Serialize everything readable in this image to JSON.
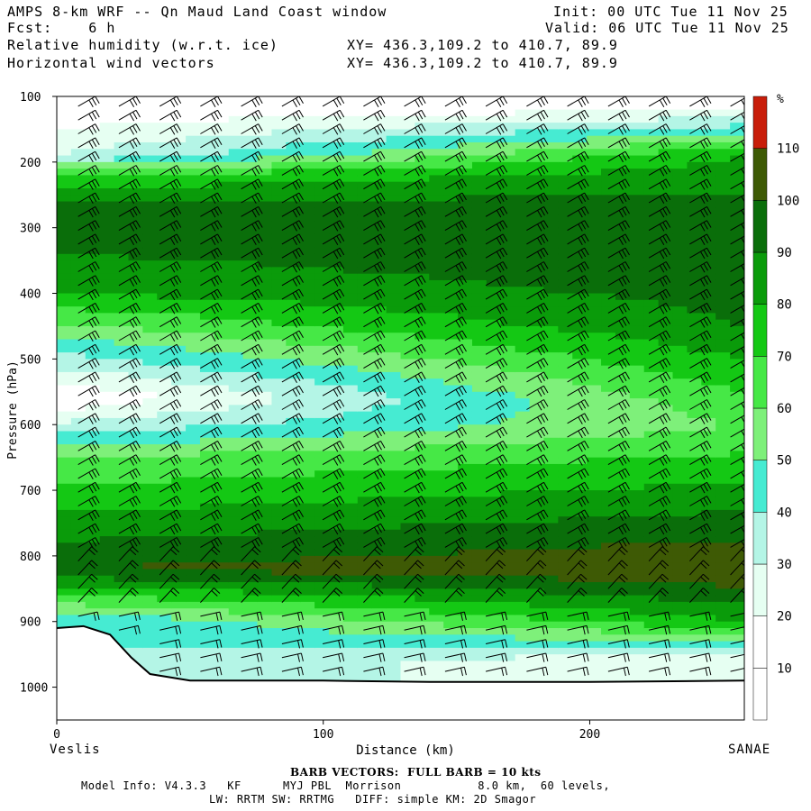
{
  "header": {
    "title": "AMPS 8-km WRF -- Qn Maud Land Coast window",
    "fcst_label": "Fcst:",
    "fcst_value": "6 h",
    "field1": "Relative humidity (w.r.t. ice)",
    "field2": "Horizontal wind vectors",
    "init": "Init: 00 UTC Tue 11 Nov 25",
    "valid": "Valid: 06 UTC Tue 11 Nov 25",
    "xy1": "XY= 436.3,109.2 to 410.7, 89.9",
    "xy2": "XY= 436.3,109.2 to 410.7, 89.9"
  },
  "footer": {
    "left_station": "Veslis",
    "right_station": "SANAE",
    "barb_note": "BARB VECTORS:  FULL BARB = 10 kts",
    "model_line1": "Model Info: V4.3.3   KF      MYJ PBL  Morrison           8.0 km,  60 levels,",
    "model_line2": "LW: RRTM SW: RRTMG   DIFF: simple KM: 2D Smagor"
  },
  "chart_data": {
    "type": "heatmap",
    "title": "Relative humidity (w.r.t. ice)",
    "xlabel": "Distance (km)",
    "ylabel": "Pressure (hPa)",
    "xlim": [
      0,
      258
    ],
    "ylim": [
      1050,
      100
    ],
    "x_ticks": [
      0,
      100,
      200
    ],
    "y_ticks": [
      100,
      200,
      300,
      400,
      500,
      600,
      700,
      800,
      900,
      1000
    ],
    "colorbar": {
      "unit": "%",
      "levels": [
        10,
        20,
        30,
        40,
        50,
        60,
        70,
        80,
        90,
        100,
        110
      ],
      "colors": [
        "#ffffff",
        "#ffffff",
        "#e6fff2",
        "#b4f5e6",
        "#46ebd2",
        "#7ef07a",
        "#46e846",
        "#14c814",
        "#0a9b0a",
        "#0a6e0a",
        "#3e5a05",
        "#c81e0a"
      ]
    },
    "terrain_surface_hPa": [
      [
        0,
        910
      ],
      [
        10,
        907
      ],
      [
        20,
        920
      ],
      [
        28,
        955
      ],
      [
        35,
        980
      ],
      [
        50,
        990
      ],
      [
        100,
        990
      ],
      [
        140,
        992
      ],
      [
        200,
        992
      ],
      [
        258,
        990
      ]
    ],
    "rh_profile_left_edge": [
      {
        "p": 110,
        "rh": 10
      },
      {
        "p": 190,
        "rh": 30
      },
      {
        "p": 220,
        "rh": 70
      },
      {
        "p": 280,
        "rh": 100
      },
      {
        "p": 400,
        "rh": 80
      },
      {
        "p": 560,
        "rh": 10
      },
      {
        "p": 650,
        "rh": 60
      },
      {
        "p": 820,
        "rh": 100
      },
      {
        "p": 900,
        "rh": 40
      }
    ],
    "rh_profile_right_edge": [
      {
        "p": 110,
        "rh": 10
      },
      {
        "p": 190,
        "rh": 80
      },
      {
        "p": 300,
        "rh": 100
      },
      {
        "p": 450,
        "rh": 90
      },
      {
        "p": 600,
        "rh": 60
      },
      {
        "p": 820,
        "rh": 110
      },
      {
        "p": 900,
        "rh": 80
      },
      {
        "p": 960,
        "rh": 20
      }
    ]
  },
  "colors": {
    "terrain_line": "#000000",
    "barb": "#000000"
  }
}
